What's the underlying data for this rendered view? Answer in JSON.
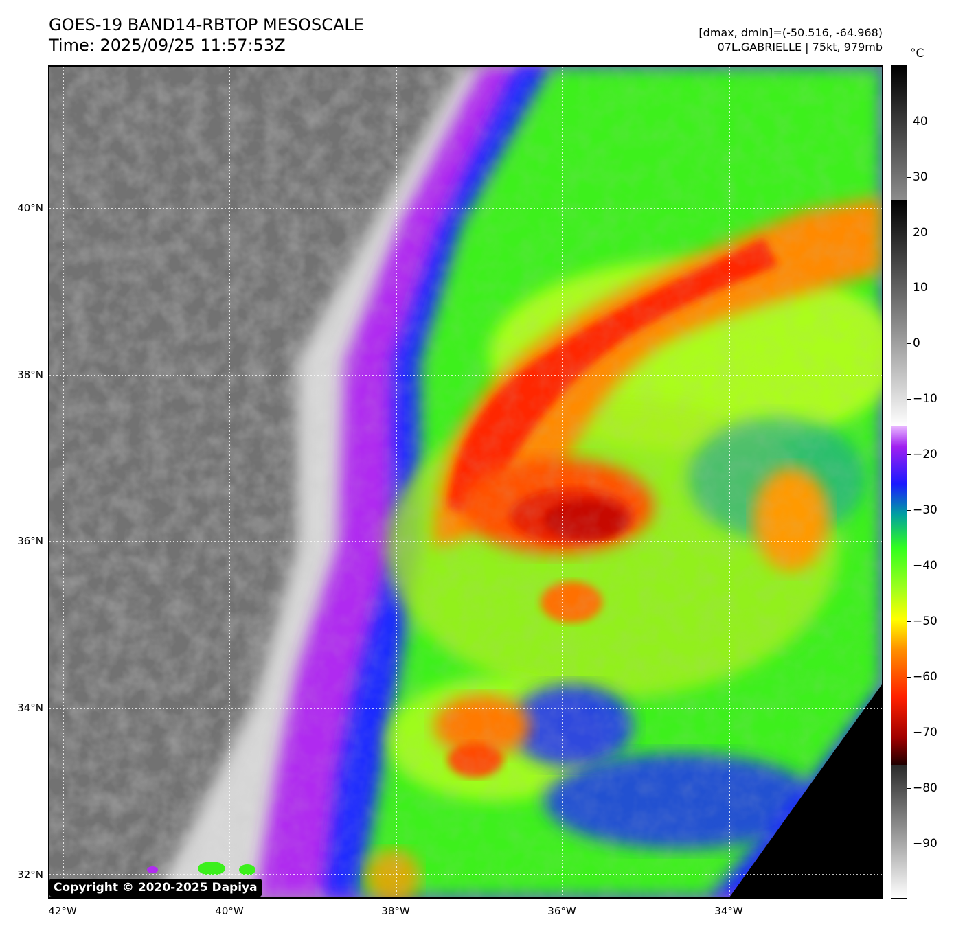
{
  "header": {
    "title_line1": "GOES-19 BAND14-RBTOP MESOSCALE",
    "title_line2": "Time: 2025/09/25 11:57:53Z",
    "stats_line": "[dmax, dmin]=(-50.516, -64.968)",
    "storm_line": "07L.GABRIELLE | 75kt, 979mb"
  },
  "map": {
    "lat_labels": [
      "40°N",
      "38°N",
      "36°N",
      "34°N",
      "32°N"
    ],
    "lon_labels": [
      "42°W",
      "40°W",
      "38°W",
      "36°W",
      "34°W"
    ],
    "gridlines": "dotted-white",
    "copyright": "Copyright © 2020-2025 Dapiya"
  },
  "colorbar": {
    "unit": "°C",
    "tick_labels": [
      "40",
      "30",
      "20",
      "10",
      "0",
      "−10",
      "−20",
      "−30",
      "−40",
      "−50",
      "−60",
      "−70",
      "−80",
      "−90"
    ]
  },
  "colors": {
    "coldest": "#8b0000",
    "cold": "#ff3000",
    "orange": "#ff8c00",
    "yellow": "#ffff00",
    "green": "#39ff14",
    "blue": "#0000ff",
    "purple": "#a020f0",
    "white": "#ffffff",
    "gray": "#6e6e6e",
    "black": "#000000"
  }
}
